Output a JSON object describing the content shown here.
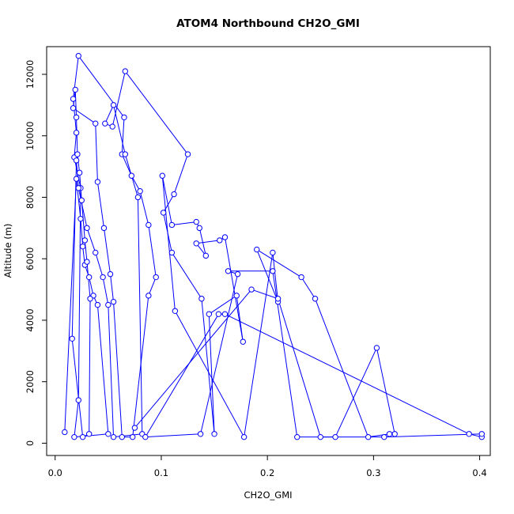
{
  "chart_data": {
    "type": "line",
    "title": "ATOM4 Northbound CH2O_GMI",
    "xlabel": "CH2O_GMI",
    "ylabel": "Altitude (m)",
    "xlim": [
      -0.008,
      0.41
    ],
    "ylim": [
      -400,
      12900
    ],
    "xticks": [
      0.0,
      0.1,
      0.2,
      0.3,
      0.4
    ],
    "xtick_labels": [
      "0.0",
      "0.1",
      "0.2",
      "0.3",
      "0.4"
    ],
    "yticks": [
      0,
      2000,
      4000,
      6000,
      8000,
      10000,
      12000
    ],
    "ytick_labels": [
      "0",
      "2000",
      "4000",
      "6000",
      "8000",
      "10000",
      "12000"
    ],
    "series_color": "#0000ff",
    "markers": "open-circle",
    "series": [
      {
        "points": [
          [
            0.009,
            360
          ],
          [
            0.02,
            8600
          ],
          [
            0.024,
            7300
          ],
          [
            0.026,
            6400
          ],
          [
            0.028,
            5800
          ],
          [
            0.032,
            5400
          ],
          [
            0.036,
            4800
          ],
          [
            0.04,
            4500
          ],
          [
            0.05,
            300
          ],
          [
            0.018,
            200
          ],
          [
            0.022,
            1400
          ],
          [
            0.024,
            8300
          ],
          [
            0.018,
            9300
          ],
          [
            0.02,
            10100
          ],
          [
            0.017,
            11200
          ],
          [
            0.022,
            12600
          ],
          [
            0.065,
            10600
          ],
          [
            0.063,
            9400
          ],
          [
            0.072,
            8700
          ],
          [
            0.08,
            8200
          ],
          [
            0.088,
            7100
          ],
          [
            0.095,
            5400
          ],
          [
            0.088,
            4800
          ],
          [
            0.073,
            200
          ],
          [
            0.063,
            200
          ],
          [
            0.055,
            4600
          ],
          [
            0.052,
            5500
          ],
          [
            0.046,
            7000
          ],
          [
            0.04,
            8500
          ],
          [
            0.038,
            10400
          ],
          [
            0.017,
            10900
          ],
          [
            0.019,
            11500
          ],
          [
            0.02,
            10600
          ],
          [
            0.021,
            9400
          ],
          [
            0.023,
            8800
          ],
          [
            0.025,
            7900
          ],
          [
            0.028,
            6600
          ],
          [
            0.03,
            5900
          ],
          [
            0.033,
            4700
          ],
          [
            0.032,
            300
          ],
          [
            0.026,
            200
          ],
          [
            0.016,
            3400
          ],
          [
            0.02,
            9200
          ],
          [
            0.022,
            8300
          ],
          [
            0.03,
            7000
          ],
          [
            0.038,
            6200
          ],
          [
            0.045,
            5400
          ],
          [
            0.05,
            4500
          ],
          [
            0.055,
            200
          ],
          [
            0.082,
            300
          ],
          [
            0.078,
            8000
          ],
          [
            0.066,
            9400
          ],
          [
            0.055,
            11000
          ],
          [
            0.047,
            10400
          ],
          [
            0.054,
            10300
          ],
          [
            0.066,
            12100
          ],
          [
            0.125,
            9400
          ],
          [
            0.112,
            8100
          ],
          [
            0.102,
            7500
          ],
          [
            0.11,
            6200
          ],
          [
            0.138,
            4700
          ],
          [
            0.15,
            300
          ],
          [
            0.145,
            4200
          ],
          [
            0.171,
            4800
          ],
          [
            0.177,
            3300
          ],
          [
            0.16,
            6700
          ],
          [
            0.155,
            6600
          ],
          [
            0.133,
            6500
          ],
          [
            0.142,
            6100
          ],
          [
            0.136,
            7000
          ],
          [
            0.133,
            7200
          ],
          [
            0.11,
            7100
          ],
          [
            0.101,
            8700
          ],
          [
            0.113,
            4300
          ],
          [
            0.178,
            200
          ],
          [
            0.205,
            6200
          ],
          [
            0.21,
            4600
          ],
          [
            0.19,
            6300
          ],
          [
            0.232,
            5400
          ],
          [
            0.245,
            4700
          ],
          [
            0.295,
            200
          ],
          [
            0.315,
            300
          ],
          [
            0.32,
            300
          ],
          [
            0.303,
            3100
          ],
          [
            0.264,
            200
          ],
          [
            0.228,
            200
          ],
          [
            0.205,
            5600
          ],
          [
            0.163,
            5600
          ],
          [
            0.172,
            5500
          ],
          [
            0.137,
            300
          ],
          [
            0.085,
            200
          ],
          [
            0.154,
            4200
          ],
          [
            0.16,
            4200
          ],
          [
            0.39,
            300
          ],
          [
            0.402,
            200
          ],
          [
            0.402,
            300
          ],
          [
            0.31,
            200
          ],
          [
            0.25,
            200
          ],
          [
            0.21,
            4700
          ],
          [
            0.185,
            5000
          ],
          [
            0.075,
            500
          ]
        ]
      }
    ]
  }
}
